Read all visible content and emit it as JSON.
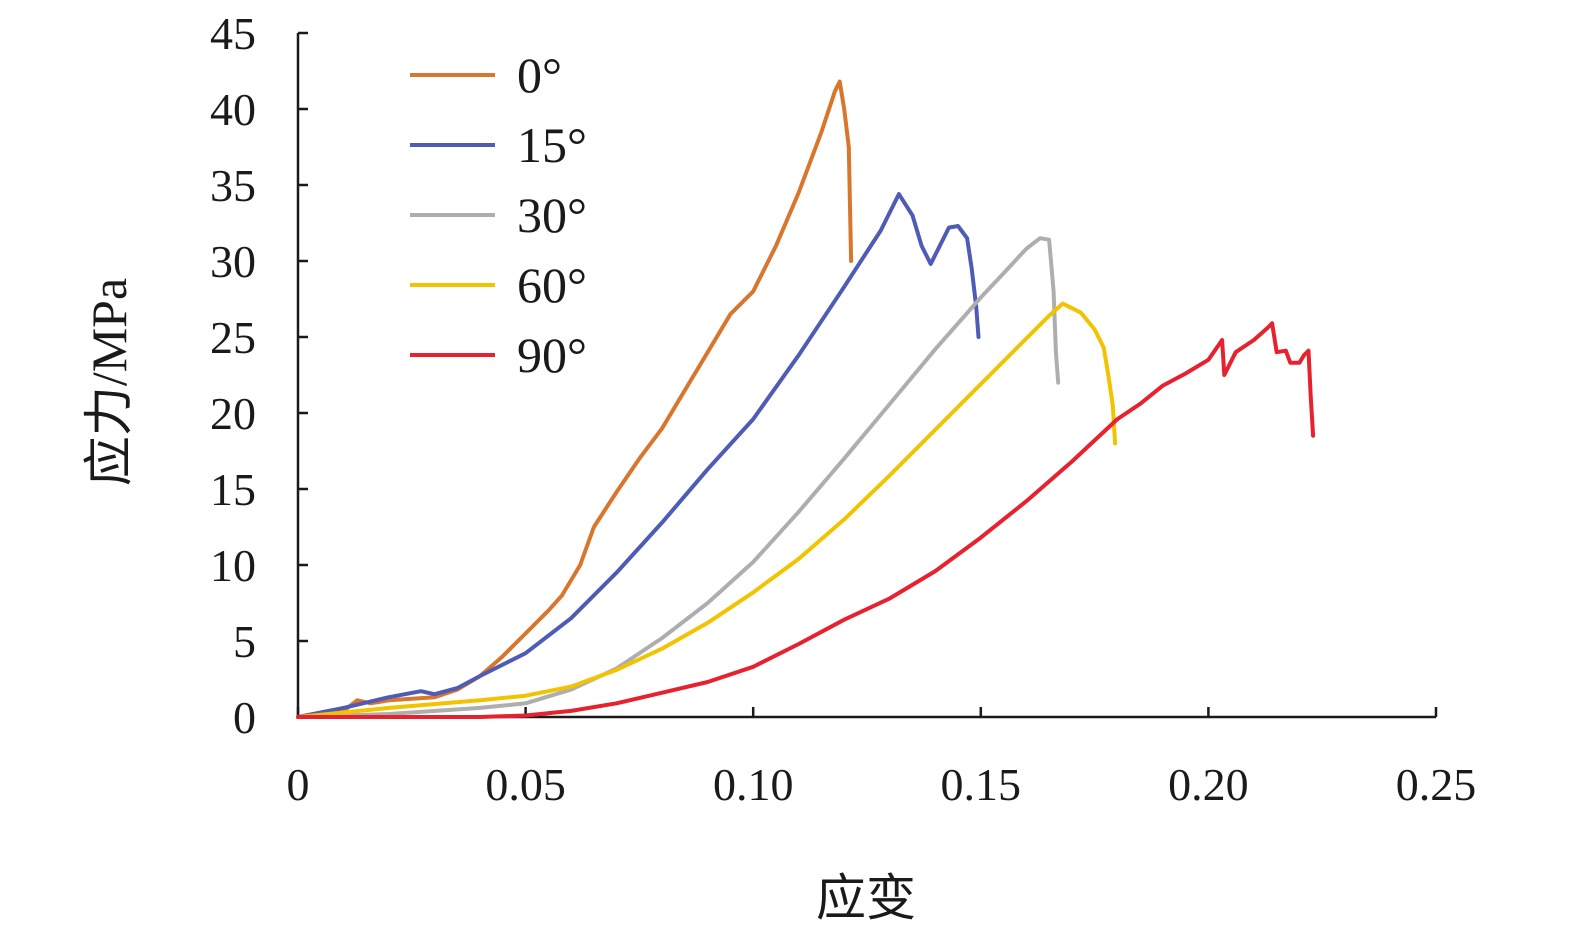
{
  "chart_data": {
    "type": "line",
    "xlabel": "应变",
    "ylabel": "应力/MPa",
    "xlim": [
      0,
      0.25
    ],
    "ylim": [
      0,
      45
    ],
    "x_ticks": [
      "0",
      "0.05",
      "0.10",
      "0.15",
      "0.20",
      "0.25"
    ],
    "x_tick_values": [
      0,
      0.05,
      0.1,
      0.15,
      0.2,
      0.25
    ],
    "y_ticks": [
      "0",
      "5",
      "10",
      "15",
      "20",
      "25",
      "30",
      "35",
      "40",
      "45"
    ],
    "y_tick_values": [
      0,
      5,
      10,
      15,
      20,
      25,
      30,
      35,
      40,
      45
    ],
    "grid": false,
    "legend_position": "top-left",
    "series": [
      {
        "name": "0°",
        "color": "#d9762e",
        "points": [
          [
            0,
            0
          ],
          [
            0.01,
            0.4
          ],
          [
            0.013,
            1.1
          ],
          [
            0.016,
            0.9
          ],
          [
            0.02,
            1.1
          ],
          [
            0.03,
            1.3
          ],
          [
            0.035,
            1.8
          ],
          [
            0.04,
            2.7
          ],
          [
            0.045,
            4.0
          ],
          [
            0.05,
            5.5
          ],
          [
            0.055,
            7.0
          ],
          [
            0.058,
            8.0
          ],
          [
            0.062,
            10.0
          ],
          [
            0.065,
            12.5
          ],
          [
            0.07,
            14.8
          ],
          [
            0.075,
            17.0
          ],
          [
            0.08,
            19.0
          ],
          [
            0.085,
            21.5
          ],
          [
            0.09,
            24.0
          ],
          [
            0.095,
            26.5
          ],
          [
            0.1,
            28.0
          ],
          [
            0.105,
            31.0
          ],
          [
            0.11,
            34.5
          ],
          [
            0.115,
            38.5
          ],
          [
            0.118,
            41.2
          ],
          [
            0.119,
            41.8
          ],
          [
            0.12,
            40.0
          ],
          [
            0.121,
            37.5
          ],
          [
            0.1215,
            30.0
          ]
        ]
      },
      {
        "name": "15°",
        "color": "#4e5cb6",
        "points": [
          [
            0,
            0
          ],
          [
            0.01,
            0.6
          ],
          [
            0.02,
            1.3
          ],
          [
            0.027,
            1.7
          ],
          [
            0.03,
            1.5
          ],
          [
            0.035,
            1.9
          ],
          [
            0.04,
            2.7
          ],
          [
            0.05,
            4.2
          ],
          [
            0.06,
            6.5
          ],
          [
            0.07,
            9.5
          ],
          [
            0.08,
            12.8
          ],
          [
            0.09,
            16.3
          ],
          [
            0.1,
            19.6
          ],
          [
            0.11,
            23.8
          ],
          [
            0.12,
            28.3
          ],
          [
            0.128,
            32.0
          ],
          [
            0.132,
            34.4
          ],
          [
            0.135,
            33.0
          ],
          [
            0.137,
            31.0
          ],
          [
            0.139,
            29.8
          ],
          [
            0.141,
            31.0
          ],
          [
            0.143,
            32.2
          ],
          [
            0.145,
            32.3
          ],
          [
            0.147,
            31.5
          ],
          [
            0.148,
            29.5
          ],
          [
            0.149,
            27.0
          ],
          [
            0.1495,
            25.0
          ]
        ]
      },
      {
        "name": "30°",
        "color": "#aeaeae",
        "points": [
          [
            0,
            0
          ],
          [
            0.02,
            0.2
          ],
          [
            0.04,
            0.6
          ],
          [
            0.05,
            0.9
          ],
          [
            0.06,
            1.8
          ],
          [
            0.07,
            3.2
          ],
          [
            0.08,
            5.2
          ],
          [
            0.09,
            7.5
          ],
          [
            0.1,
            10.2
          ],
          [
            0.11,
            13.5
          ],
          [
            0.12,
            17.0
          ],
          [
            0.13,
            20.6
          ],
          [
            0.14,
            24.2
          ],
          [
            0.15,
            27.6
          ],
          [
            0.155,
            29.2
          ],
          [
            0.16,
            30.8
          ],
          [
            0.163,
            31.5
          ],
          [
            0.165,
            31.4
          ],
          [
            0.166,
            28.0
          ],
          [
            0.1665,
            24.0
          ],
          [
            0.167,
            22.0
          ]
        ]
      },
      {
        "name": "60°",
        "color": "#f2c300",
        "points": [
          [
            0,
            0
          ],
          [
            0.02,
            0.6
          ],
          [
            0.04,
            1.1
          ],
          [
            0.05,
            1.4
          ],
          [
            0.06,
            2.0
          ],
          [
            0.07,
            3.1
          ],
          [
            0.08,
            4.5
          ],
          [
            0.09,
            6.2
          ],
          [
            0.1,
            8.2
          ],
          [
            0.11,
            10.4
          ],
          [
            0.12,
            13.0
          ],
          [
            0.13,
            15.9
          ],
          [
            0.14,
            18.9
          ],
          [
            0.15,
            21.9
          ],
          [
            0.16,
            24.9
          ],
          [
            0.165,
            26.4
          ],
          [
            0.168,
            27.2
          ],
          [
            0.172,
            26.6
          ],
          [
            0.175,
            25.5
          ],
          [
            0.177,
            24.3
          ],
          [
            0.178,
            22.5
          ],
          [
            0.179,
            20.5
          ],
          [
            0.1795,
            18.0
          ]
        ]
      },
      {
        "name": "90°",
        "color": "#e8212f",
        "points": [
          [
            0,
            0
          ],
          [
            0.04,
            0.0
          ],
          [
            0.05,
            0.1
          ],
          [
            0.06,
            0.4
          ],
          [
            0.07,
            0.9
          ],
          [
            0.08,
            1.6
          ],
          [
            0.09,
            2.3
          ],
          [
            0.1,
            3.3
          ],
          [
            0.11,
            4.8
          ],
          [
            0.12,
            6.4
          ],
          [
            0.13,
            7.8
          ],
          [
            0.14,
            9.6
          ],
          [
            0.15,
            11.8
          ],
          [
            0.16,
            14.2
          ],
          [
            0.17,
            16.8
          ],
          [
            0.18,
            19.6
          ],
          [
            0.185,
            20.6
          ],
          [
            0.19,
            21.8
          ],
          [
            0.195,
            22.6
          ],
          [
            0.2,
            23.5
          ],
          [
            0.203,
            24.8
          ],
          [
            0.2035,
            22.5
          ],
          [
            0.206,
            24.0
          ],
          [
            0.21,
            24.8
          ],
          [
            0.213,
            25.6
          ],
          [
            0.214,
            25.9
          ],
          [
            0.215,
            24.0
          ],
          [
            0.217,
            24.1
          ],
          [
            0.218,
            23.3
          ],
          [
            0.22,
            23.3
          ],
          [
            0.221,
            23.8
          ],
          [
            0.222,
            24.1
          ],
          [
            0.2225,
            21.0
          ],
          [
            0.223,
            18.5
          ]
        ]
      }
    ]
  }
}
